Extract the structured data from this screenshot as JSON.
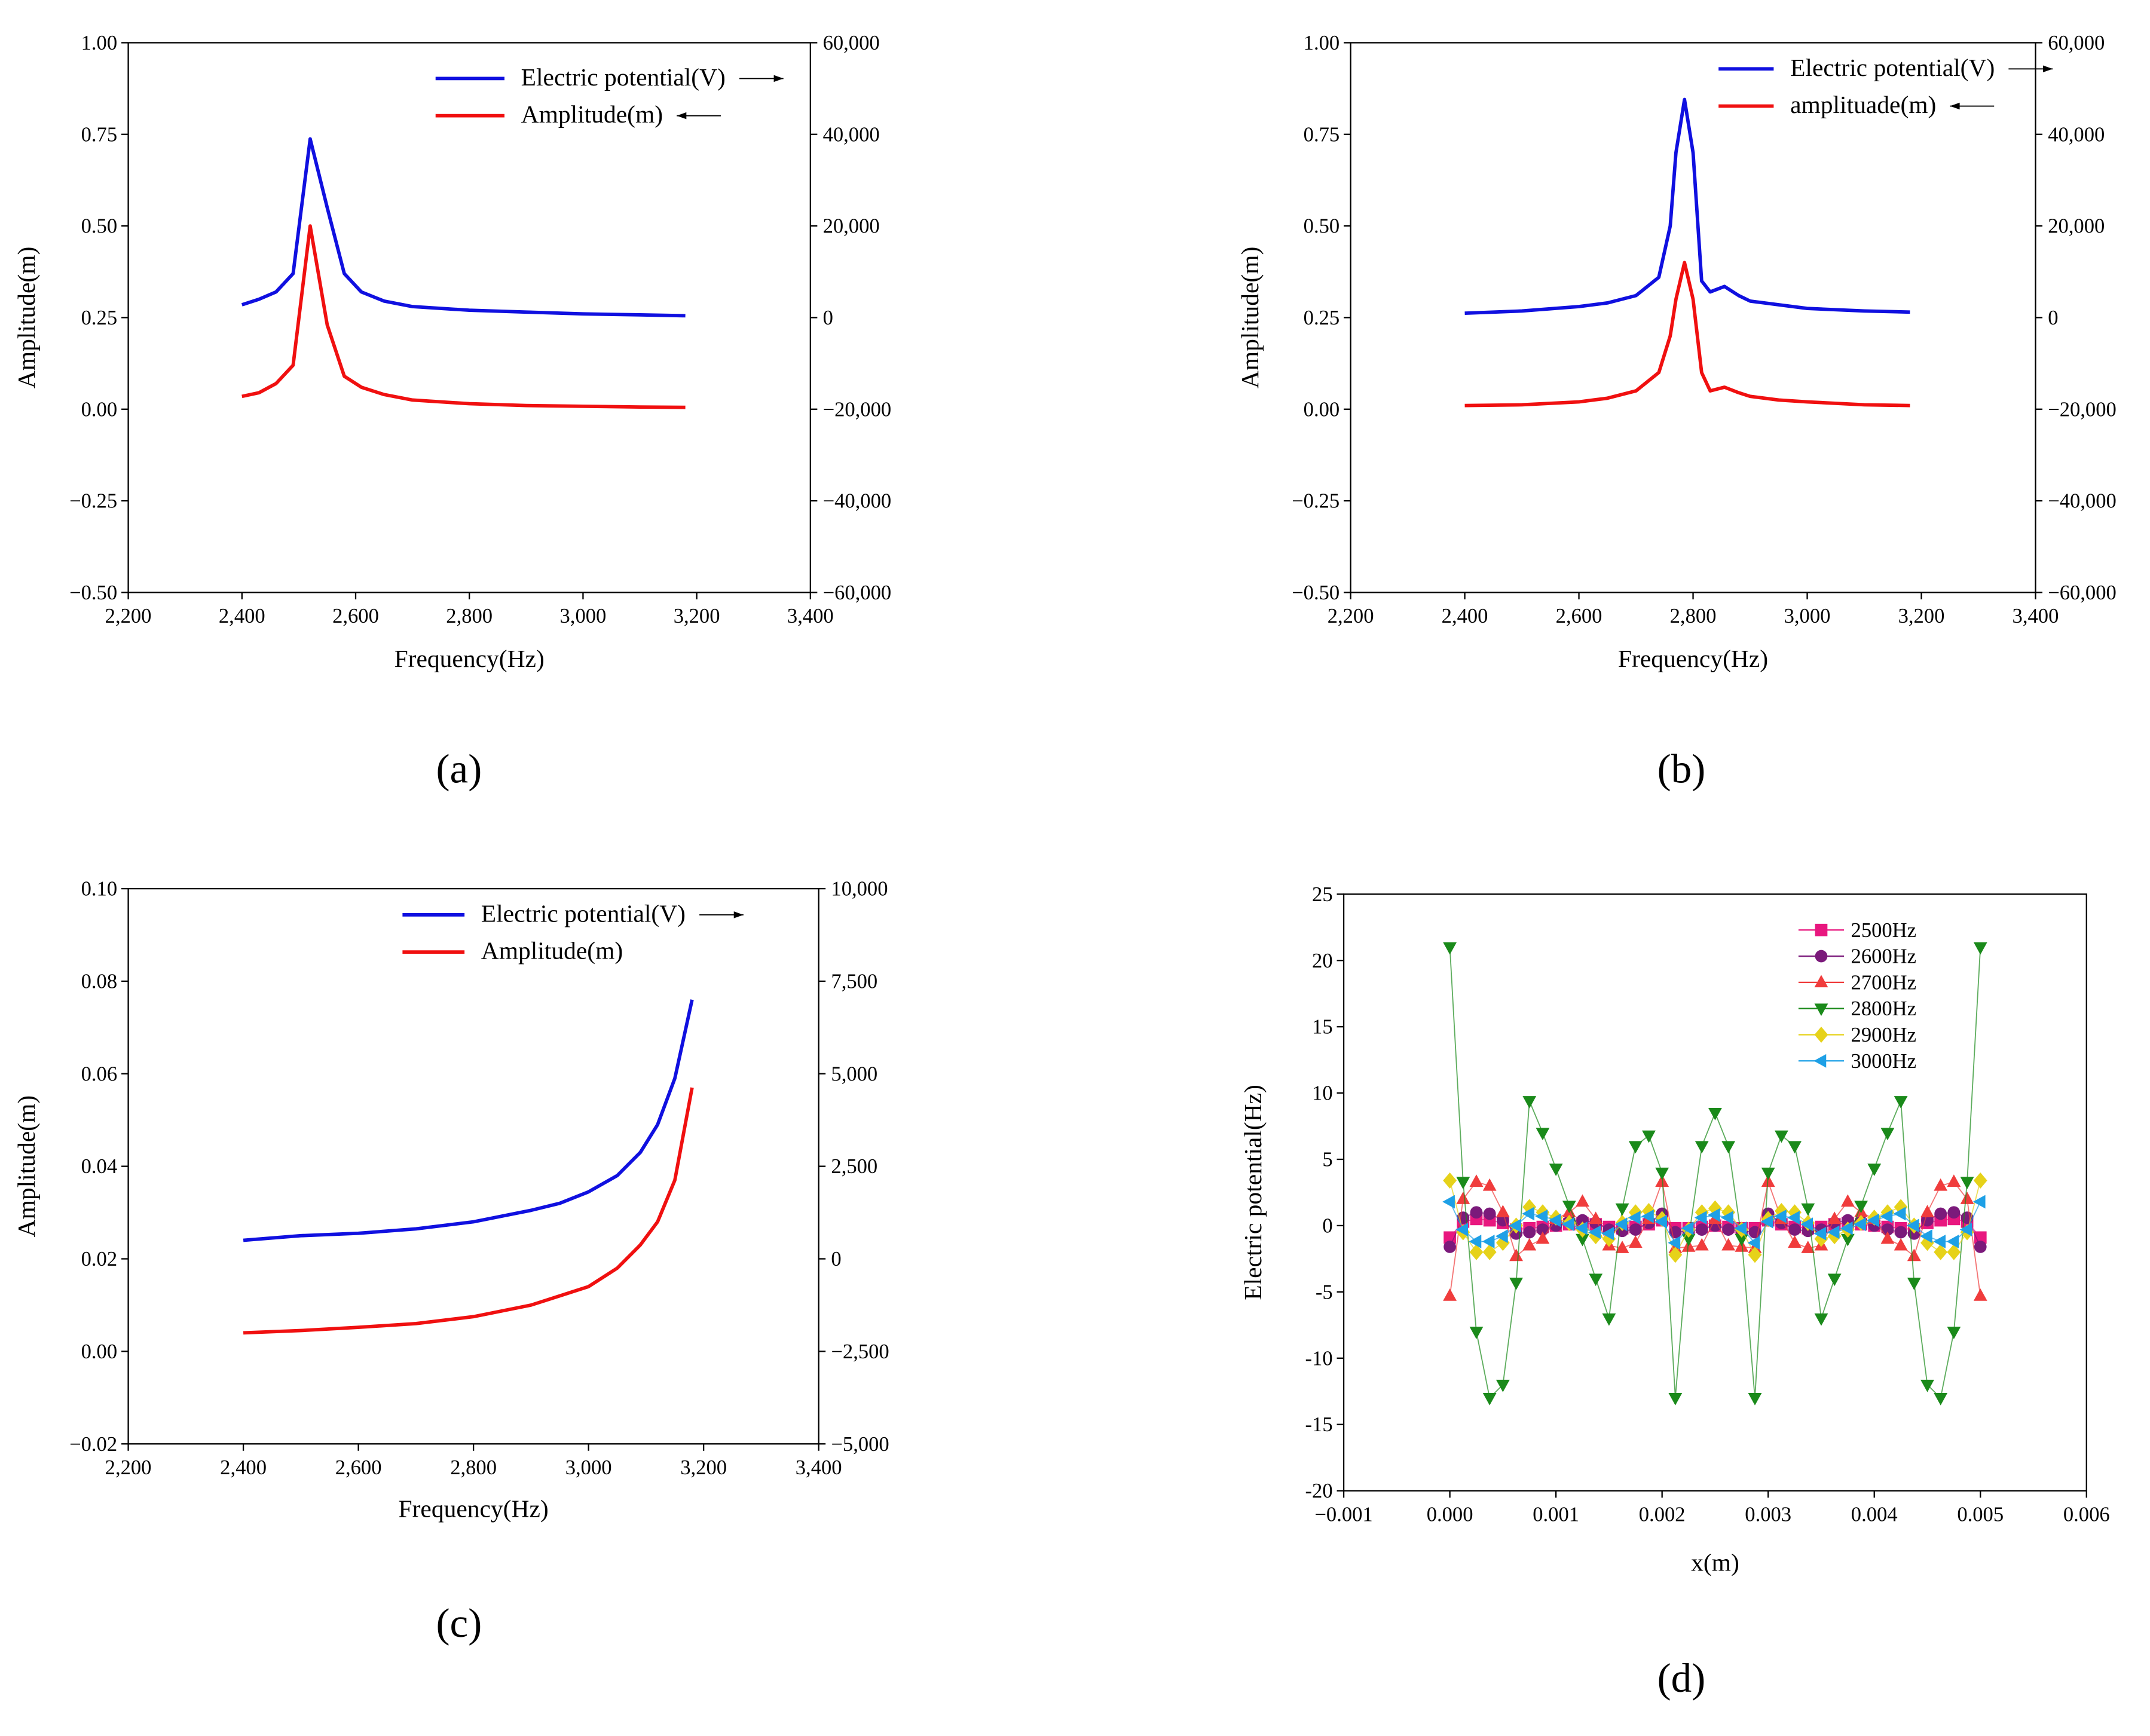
{
  "chart_data": [
    {
      "type": "line",
      "label": "(a)",
      "xlabel": "Frequency(Hz)",
      "ylabel": "Amplitude(m)",
      "x": [
        2400,
        2430,
        2460,
        2490,
        2520,
        2550,
        2580,
        2610,
        2650,
        2700,
        2800,
        2900,
        3000,
        3100,
        3180
      ],
      "series": [
        {
          "name": "Electric potential(V)",
          "color": "#1010e0",
          "axis": "y2",
          "values": [
            2800,
            4000,
            5600,
            9600,
            39000,
            24000,
            9600,
            5600,
            3600,
            2400,
            1600,
            1200,
            800,
            600,
            400
          ]
        },
        {
          "name": "Amplitude(m)",
          "color": "#f01010",
          "values": [
            0.035,
            0.045,
            0.07,
            0.12,
            0.5,
            0.23,
            0.09,
            0.06,
            0.04,
            0.025,
            0.015,
            0.01,
            0.008,
            0.006,
            0.005
          ]
        }
      ],
      "xlim": [
        2200,
        3400
      ],
      "xticks": [
        {
          "value": 2200,
          "label": "2,200"
        },
        {
          "value": 2400,
          "label": "2,400"
        },
        {
          "value": 2600,
          "label": "2,600"
        },
        {
          "value": 2800,
          "label": "2,800"
        },
        {
          "value": 3000,
          "label": "3,000"
        },
        {
          "value": 3200,
          "label": "3,200"
        },
        {
          "value": 3400,
          "label": "3,400"
        }
      ],
      "ylim": [
        -0.5,
        1.0
      ],
      "yticks": [
        {
          "value": -0.5,
          "label": "−0.50"
        },
        {
          "value": -0.25,
          "label": "−0.25"
        },
        {
          "value": 0,
          "label": "0.00"
        },
        {
          "value": 0.25,
          "label": "0.25"
        },
        {
          "value": 0.5,
          "label": "0.50"
        },
        {
          "value": 0.75,
          "label": "0.75"
        },
        {
          "value": 1.0,
          "label": "1.00"
        }
      ],
      "y2lim": [
        -60000,
        60000
      ],
      "y2ticks": [
        {
          "value": -60000,
          "label": "−60,000"
        },
        {
          "value": -40000,
          "label": "−40,000"
        },
        {
          "value": -20000,
          "label": "−20,000"
        },
        0,
        {
          "value": 20000,
          "label": "20,000"
        },
        {
          "value": 40000,
          "label": "40,000"
        },
        {
          "value": 60000,
          "label": "60,000"
        }
      ]
    },
    {
      "type": "line",
      "label": "(b)",
      "xlabel": "Frequency(Hz)",
      "ylabel": "Amplitude(m)",
      "x": [
        2400,
        2500,
        2600,
        2650,
        2700,
        2740,
        2760,
        2770,
        2785,
        2800,
        2815,
        2830,
        2855,
        2880,
        2900,
        2950,
        3000,
        3100,
        3180
      ],
      "series": [
        {
          "name": "Electric potential(V)",
          "color": "#1010e0",
          "axis": "y2",
          "values": [
            960,
            1440,
            2400,
            3200,
            4800,
            8800,
            20000,
            36000,
            47600,
            36000,
            8000,
            5600,
            6800,
            4800,
            3600,
            2800,
            2000,
            1440,
            1200
          ]
        },
        {
          "name": "amplituade(m)",
          "color": "#f01010",
          "values": [
            0.01,
            0.012,
            0.02,
            0.03,
            0.05,
            0.1,
            0.2,
            0.3,
            0.4,
            0.3,
            0.1,
            0.05,
            0.06,
            0.045,
            0.035,
            0.025,
            0.02,
            0.012,
            0.01
          ]
        }
      ],
      "xlim": [
        2200,
        3400
      ],
      "xticks": [
        {
          "value": 2200,
          "label": "2,200"
        },
        {
          "value": 2400,
          "label": "2,400"
        },
        {
          "value": 2600,
          "label": "2,600"
        },
        {
          "value": 2800,
          "label": "2,800"
        },
        {
          "value": 3000,
          "label": "3,000"
        },
        {
          "value": 3200,
          "label": "3,200"
        },
        {
          "value": 3400,
          "label": "3,400"
        }
      ],
      "ylim": [
        -0.5,
        1.0
      ],
      "yticks": [
        {
          "value": -0.5,
          "label": "−0.50"
        },
        {
          "value": -0.25,
          "label": "−0.25"
        },
        {
          "value": 0,
          "label": "0.00"
        },
        {
          "value": 0.25,
          "label": "0.25"
        },
        {
          "value": 0.5,
          "label": "0.50"
        },
        {
          "value": 0.75,
          "label": "0.75"
        },
        {
          "value": 1.0,
          "label": "1.00"
        }
      ],
      "y2lim": [
        -60000,
        60000
      ],
      "y2ticks": [
        {
          "value": -60000,
          "label": "−60,000"
        },
        {
          "value": -40000,
          "label": "−40,000"
        },
        {
          "value": -20000,
          "label": "−20,000"
        },
        0,
        {
          "value": 20000,
          "label": "20,000"
        },
        {
          "value": 40000,
          "label": "40,000"
        },
        {
          "value": 60000,
          "label": "60,000"
        }
      ]
    },
    {
      "type": "line",
      "label": "(c)",
      "xlabel": "Frequency(Hz)",
      "ylabel": "Amplitude(m)",
      "x": [
        2400,
        2500,
        2600,
        2700,
        2800,
        2900,
        2950,
        3000,
        3050,
        3090,
        3120,
        3150,
        3180
      ],
      "series": [
        {
          "name": "Electric potential(V)",
          "color": "#1010e0",
          "axis": "y2",
          "values": [
            500,
            625,
            690,
            810,
            1000,
            1310,
            1500,
            1810,
            2250,
            2875,
            3625,
            4875,
            7000
          ]
        },
        {
          "name": "Amplitude(m)",
          "color": "#f01010",
          "values": [
            0.004,
            0.0045,
            0.0052,
            0.006,
            0.0075,
            0.01,
            0.012,
            0.014,
            0.018,
            0.023,
            0.028,
            0.037,
            0.057
          ]
        }
      ],
      "xlim": [
        2200,
        3400
      ],
      "xticks": [
        {
          "value": 2200,
          "label": "2,200"
        },
        {
          "value": 2400,
          "label": "2,400"
        },
        {
          "value": 2600,
          "label": "2,600"
        },
        {
          "value": 2800,
          "label": "2,800"
        },
        {
          "value": 3000,
          "label": "3,000"
        },
        {
          "value": 3200,
          "label": "3,200"
        },
        {
          "value": 3400,
          "label": "3,400"
        }
      ],
      "ylim": [
        -0.02,
        0.1
      ],
      "yticks": [
        {
          "value": -0.02,
          "label": "−0.02"
        },
        {
          "value": 0,
          "label": "0.00"
        },
        {
          "value": 0.02,
          "label": "0.02"
        },
        {
          "value": 0.04,
          "label": "0.04"
        },
        {
          "value": 0.06,
          "label": "0.06"
        },
        {
          "value": 0.08,
          "label": "0.08"
        },
        {
          "value": 0.1,
          "label": "0.10"
        }
      ],
      "y2lim": [
        -5000,
        10000
      ],
      "y2ticks": [
        {
          "value": -5000,
          "label": "−5,000"
        },
        {
          "value": -2500,
          "label": "−2,500"
        },
        0,
        {
          "value": 2500,
          "label": "2,500"
        },
        {
          "value": 5000,
          "label": "5,000"
        },
        {
          "value": 7500,
          "label": "7,500"
        },
        {
          "value": 10000,
          "label": "10,000"
        }
      ]
    },
    {
      "type": "line",
      "label": "(d)",
      "xlabel": "x(m)",
      "ylabel": "Electric potential(Hz)",
      "x": [
        0,
        0.000125,
        0.00025,
        0.000375,
        0.0005,
        0.000625,
        0.00075,
        0.000875,
        0.001,
        0.001125,
        0.00125,
        0.001375,
        0.0015,
        0.001625,
        0.00175,
        0.001875,
        0.002,
        0.002125,
        0.00225,
        0.002375,
        0.0025,
        0.002625,
        0.00275,
        0.002875,
        0.003,
        0.003125,
        0.00325,
        0.003375,
        0.0035,
        0.003625,
        0.00375,
        0.003875,
        0.004,
        0.004125,
        0.00425,
        0.004375,
        0.0045,
        0.004625,
        0.00475,
        0.004875,
        0.005
      ],
      "series": [
        {
          "name": "2500Hz",
          "color": "#e8177f",
          "marker": "square",
          "values": [
            -0.9,
            0.3,
            0.5,
            0.4,
            0.2,
            -0.3,
            -0.2,
            -0.1,
            0,
            0.1,
            0.2,
            0.1,
            -0.1,
            -0.2,
            -0.1,
            0.1,
            0.4,
            -0.2,
            -0.2,
            -0.1,
            0,
            -0.1,
            -0.2,
            -0.2,
            0.4,
            0.1,
            -0.1,
            -0.2,
            -0.1,
            0.1,
            0.2,
            0.1,
            0,
            -0.1,
            -0.2,
            -0.3,
            0.2,
            0.4,
            0.5,
            0.3,
            -0.9
          ]
        },
        {
          "name": "2600Hz",
          "color": "#7b1a7b",
          "marker": "circle",
          "values": [
            -1.6,
            0.6,
            1,
            0.9,
            0.4,
            -0.6,
            -0.5,
            -0.3,
            0,
            0.3,
            0.4,
            0.2,
            -0.3,
            -0.4,
            -0.3,
            0.2,
            0.9,
            -0.5,
            -0.4,
            -0.3,
            0,
            -0.3,
            -0.4,
            -0.5,
            0.9,
            0.2,
            -0.3,
            -0.4,
            -0.3,
            0.2,
            0.4,
            0.3,
            0,
            -0.3,
            -0.5,
            -0.6,
            0.4,
            0.9,
            1,
            0.6,
            -1.6
          ]
        },
        {
          "name": "2700Hz",
          "color": "#f03c3c",
          "marker": "up",
          "values": [
            -5.3,
            2,
            3.3,
            3,
            1,
            -2.3,
            -1.5,
            -1,
            0.5,
            1,
            1.8,
            0.5,
            -1.5,
            -1.7,
            -1.3,
            0.5,
            3.3,
            -1.7,
            -1.6,
            -1.5,
            0.5,
            -1.5,
            -1.6,
            -1.7,
            3.3,
            0.5,
            -1.3,
            -1.7,
            -1.5,
            0.5,
            1.8,
            1,
            0.5,
            -1,
            -1.5,
            -2.3,
            1,
            3,
            3.3,
            2,
            -5.3
          ]
        },
        {
          "name": "2800Hz",
          "color": "#1a8a1a",
          "marker": "down",
          "values": [
            21,
            3.3,
            -8,
            -13,
            -12,
            -4.3,
            9.4,
            7,
            4.3,
            1.5,
            -1,
            -4,
            -7,
            1.3,
            6,
            6.8,
            4,
            -13,
            -1,
            6,
            8.5,
            6,
            -1,
            -13,
            4,
            6.8,
            6,
            1.3,
            -7,
            -4,
            -1,
            1.5,
            4.3,
            7,
            9.4,
            -4.3,
            -12,
            -13,
            -8,
            3.3,
            21
          ]
        },
        {
          "name": "2900Hz",
          "color": "#e6d21a",
          "marker": "diamond",
          "values": [
            3.4,
            -0.5,
            -2,
            -2,
            -1.3,
            0,
            1.4,
            1,
            0.6,
            0.2,
            -0.3,
            -0.8,
            -1,
            0.2,
            1,
            1.1,
            0.5,
            -2.2,
            -0.3,
            1,
            1.3,
            1,
            -0.3,
            -2.2,
            0.5,
            1.1,
            1,
            0.2,
            -1,
            -0.8,
            -0.3,
            0.2,
            0.6,
            1,
            1.4,
            0,
            -1.3,
            -2,
            -2,
            -0.5,
            3.4
          ]
        },
        {
          "name": "3000Hz",
          "color": "#1ea0e6",
          "marker": "left",
          "values": [
            1.8,
            -0.3,
            -1.2,
            -1.2,
            -0.8,
            0,
            0.9,
            0.7,
            0.4,
            0.1,
            -0.2,
            -0.5,
            -0.6,
            0.1,
            0.6,
            0.7,
            0.3,
            -1.3,
            -0.2,
            0.6,
            0.8,
            0.6,
            -0.2,
            -1.3,
            0.3,
            0.7,
            0.6,
            0.1,
            -0.6,
            -0.5,
            -0.2,
            0.1,
            0.4,
            0.7,
            0.9,
            0,
            -0.8,
            -1.2,
            -1.2,
            -0.3,
            1.8
          ]
        }
      ],
      "xlim": [
        -0.001,
        0.006
      ],
      "xticks": [
        {
          "value": -0.001,
          "label": "−0.001"
        },
        {
          "value": 0,
          "label": "0.000"
        },
        {
          "value": 0.001,
          "label": "0.001"
        },
        {
          "value": 0.002,
          "label": "0.002"
        },
        {
          "value": 0.003,
          "label": "0.003"
        },
        {
          "value": 0.004,
          "label": "0.004"
        },
        {
          "value": 0.005,
          "label": "0.005"
        },
        {
          "value": 0.006,
          "label": "0.006"
        }
      ],
      "ylim": [
        -20,
        25
      ],
      "yticks": [
        -20,
        -15,
        -10,
        -5,
        0,
        5,
        10,
        15,
        20,
        25
      ]
    }
  ]
}
